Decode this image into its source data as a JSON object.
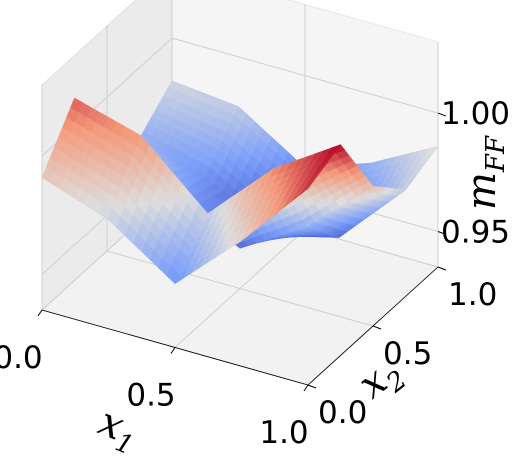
{
  "chart_data": {
    "type": "surface",
    "title": "",
    "xlabel": "x",
    "xlabel_sub": "1",
    "ylabel": "x",
    "ylabel_sub": "2",
    "zlabel": "m",
    "zlabel_sub": "FF",
    "xlim": [
      0.0,
      1.0
    ],
    "ylim": [
      0.0,
      1.0
    ],
    "zlim": [
      0.935,
      1.03
    ],
    "x_ticks": [
      "0.0",
      "0.5",
      "1.0"
    ],
    "y_ticks": [
      "0.0",
      "0.5",
      "1.0"
    ],
    "z_ticks": [
      "0.95",
      "1.00"
    ],
    "colormap": "coolwarm",
    "grid": true,
    "surface_samples": {
      "x": [
        0.0,
        0.25,
        0.5,
        0.75,
        1.0
      ],
      "y": [
        0.0,
        0.25,
        0.5,
        0.75,
        1.0
      ],
      "z": [
        [
          0.991,
          0.981,
          0.962,
          0.988,
          1.018
        ],
        [
          1.012,
          1.004,
          0.979,
          1.006,
          1.024
        ],
        [
          0.99,
          0.966,
          0.952,
          0.969,
          0.994
        ],
        [
          0.97,
          0.962,
          0.945,
          0.952,
          0.98
        ],
        [
          0.982,
          0.979,
          0.961,
          0.971,
          0.986
        ]
      ]
    }
  }
}
